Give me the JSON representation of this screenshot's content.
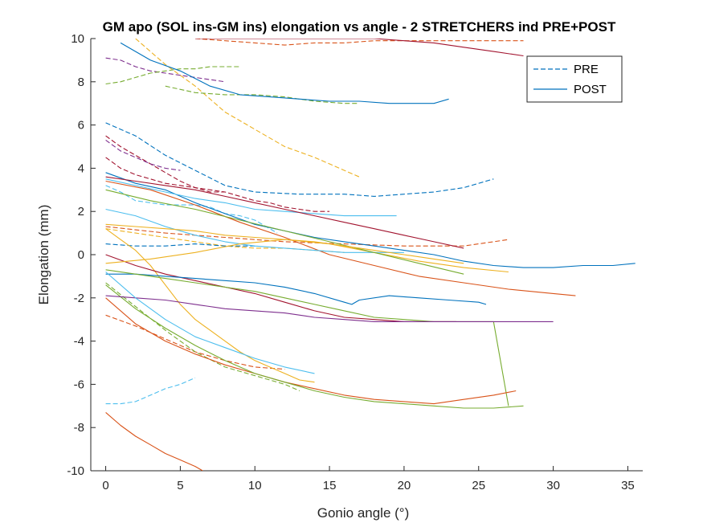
{
  "chart_data": {
    "type": "line",
    "title": "GM apo (SOL ins-GM ins) elongation vs angle - 2 STRETCHERS ind PRE+POST",
    "xlabel": "Gonio angle (°)",
    "ylabel": "Elongation (mm)",
    "xlim": [
      -1,
      36
    ],
    "ylim": [
      -10,
      10
    ],
    "xticks": [
      0,
      5,
      10,
      15,
      20,
      25,
      30,
      35
    ],
    "yticks": [
      -10,
      -8,
      -6,
      -4,
      -2,
      0,
      2,
      4,
      6,
      8,
      10
    ],
    "grid": false,
    "legend": {
      "placement": "top-right",
      "entries": [
        {
          "label": "PRE",
          "style": "dashed",
          "color": "#0072BD"
        },
        {
          "label": "POST",
          "style": "solid",
          "color": "#0072BD"
        }
      ]
    },
    "series": [
      {
        "style": "dashed",
        "color": "#0072BD",
        "x": [
          0,
          2,
          4,
          6,
          8,
          10,
          13,
          16,
          18,
          20,
          22,
          24,
          26
        ],
        "y": [
          6.1,
          5.5,
          4.6,
          3.9,
          3.2,
          2.9,
          2.8,
          2.8,
          2.7,
          2.8,
          2.9,
          3.1,
          3.5
        ]
      },
      {
        "style": "dashed",
        "color": "#D95319",
        "x": [
          6,
          8,
          10,
          12,
          14,
          16,
          18,
          20,
          22,
          24,
          26,
          28
        ],
        "y": [
          10.0,
          9.9,
          9.8,
          9.7,
          9.8,
          9.8,
          9.9,
          9.9,
          9.9,
          9.9,
          9.9,
          9.9
        ]
      },
      {
        "style": "dashed",
        "color": "#EDB120",
        "x": [
          2,
          4,
          6,
          8,
          10,
          12,
          14,
          16,
          17
        ],
        "y": [
          10.0,
          8.8,
          7.8,
          6.6,
          5.8,
          5.0,
          4.5,
          3.9,
          3.6
        ]
      },
      {
        "style": "dashed",
        "color": "#7E2F8E",
        "x": [
          0,
          1,
          2,
          3,
          4,
          5,
          6,
          7,
          8
        ],
        "y": [
          9.1,
          9.0,
          8.7,
          8.5,
          8.4,
          8.3,
          8.2,
          8.1,
          8.0
        ]
      },
      {
        "style": "dashed",
        "color": "#77AC30",
        "x": [
          0,
          1,
          2,
          3,
          4,
          5,
          6,
          7,
          8,
          9
        ],
        "y": [
          7.9,
          8.0,
          8.2,
          8.4,
          8.5,
          8.6,
          8.6,
          8.7,
          8.7,
          8.7
        ]
      },
      {
        "style": "dashed",
        "color": "#4DBEEE",
        "x": [
          0,
          1,
          2,
          3,
          4,
          5,
          6,
          7,
          8,
          9,
          10,
          11,
          11.5
        ],
        "y": [
          3.2,
          2.9,
          2.5,
          2.4,
          2.3,
          2.3,
          2.3,
          2.2,
          1.9,
          1.8,
          1.6,
          1.2,
          1.0
        ]
      },
      {
        "style": "dashed",
        "color": "#A2142F",
        "x": [
          0,
          1,
          2,
          3,
          4,
          5,
          6,
          7,
          8,
          9,
          10,
          11,
          12,
          13,
          14,
          15
        ],
        "y": [
          5.5,
          5.0,
          4.6,
          4.2,
          3.8,
          3.4,
          3.1,
          2.9,
          2.9,
          2.7,
          2.5,
          2.4,
          2.2,
          2.1,
          2.0,
          2.0
        ]
      },
      {
        "style": "dashed",
        "color": "#D95319",
        "x": [
          0,
          4,
          8,
          12,
          16,
          20,
          22,
          24,
          26,
          27
        ],
        "y": [
          1.3,
          1.0,
          0.8,
          0.6,
          0.5,
          0.4,
          0.4,
          0.4,
          0.6,
          0.7
        ]
      },
      {
        "style": "dashed",
        "color": "#EDB120",
        "x": [
          0,
          2,
          4,
          6,
          8,
          10,
          12,
          14,
          16
        ],
        "y": [
          1.2,
          1.0,
          0.8,
          0.6,
          0.4,
          0.3,
          0.3,
          0.2,
          0.1
        ]
      },
      {
        "style": "dashed",
        "color": "#0072BD",
        "x": [
          0,
          2,
          4,
          6,
          8,
          10
        ],
        "y": [
          0.5,
          0.4,
          0.4,
          0.5,
          0.4,
          0.4
        ]
      },
      {
        "style": "dashed",
        "color": "#4DBEEE",
        "x": [
          0,
          1,
          2,
          3,
          4,
          5,
          6
        ],
        "y": [
          -6.9,
          -6.9,
          -6.8,
          -6.5,
          -6.2,
          -6.0,
          -5.7
        ]
      },
      {
        "style": "dashed",
        "color": "#D95319",
        "x": [
          0,
          2,
          4,
          6,
          8,
          10,
          12
        ],
        "y": [
          -2.8,
          -3.3,
          -3.9,
          -4.5,
          -4.9,
          -5.2,
          -5.3
        ]
      },
      {
        "style": "dashed",
        "color": "#77AC30",
        "x": [
          0,
          2,
          4,
          6,
          8,
          10,
          12,
          13
        ],
        "y": [
          -1.3,
          -2.4,
          -3.5,
          -4.5,
          -5.2,
          -5.6,
          -6.0,
          -6.3
        ]
      },
      {
        "style": "dashed",
        "color": "#A2142F",
        "x": [
          0,
          1,
          2,
          3,
          4,
          5,
          6,
          7,
          8
        ],
        "y": [
          4.5,
          4.0,
          3.7,
          3.5,
          3.3,
          3.2,
          3.1,
          3.0,
          2.9
        ]
      },
      {
        "style": "dashed",
        "color": "#7E2F8E",
        "x": [
          0,
          1,
          2,
          3,
          4,
          5
        ],
        "y": [
          5.3,
          4.8,
          4.5,
          4.2,
          4.0,
          3.9
        ]
      },
      {
        "style": "dashed",
        "color": "#77AC30",
        "x": [
          4,
          6,
          8,
          10,
          12,
          14,
          16,
          17
        ],
        "y": [
          7.8,
          7.5,
          7.4,
          7.4,
          7.3,
          7.1,
          7.0,
          7.0
        ]
      },
      {
        "style": "solid",
        "color": "#0072BD",
        "x": [
          1,
          3,
          5,
          7,
          9,
          11,
          13,
          15,
          17,
          19,
          21,
          22,
          23
        ],
        "y": [
          9.8,
          9.0,
          8.5,
          7.8,
          7.4,
          7.3,
          7.2,
          7.1,
          7.1,
          7.0,
          7.0,
          7.0,
          7.2
        ]
      },
      {
        "style": "solid",
        "color": "#A2142F",
        "x": [
          6,
          10,
          14,
          18,
          20,
          22,
          24,
          26,
          28
        ],
        "y": [
          10.0,
          10.0,
          10.0,
          10.0,
          9.9,
          9.8,
          9.6,
          9.4,
          9.2
        ]
      },
      {
        "style": "solid",
        "color": "#EDB120",
        "x": [
          0,
          1,
          2,
          3,
          4,
          5,
          6,
          7,
          8,
          9,
          10,
          11,
          12,
          13,
          14
        ],
        "y": [
          1.2,
          0.7,
          0.2,
          -0.5,
          -1.4,
          -2.3,
          -3.0,
          -3.5,
          -4.0,
          -4.5,
          -4.9,
          -5.2,
          -5.5,
          -5.8,
          -5.9
        ]
      },
      {
        "style": "solid",
        "color": "#0072BD",
        "x": [
          0,
          2,
          4,
          6,
          8,
          10,
          12,
          14,
          16,
          18,
          20,
          22,
          24,
          26,
          28,
          30,
          32,
          34,
          35.5
        ],
        "y": [
          3.8,
          3.3,
          3.0,
          2.4,
          1.9,
          1.4,
          1.1,
          0.8,
          0.6,
          0.4,
          0.2,
          0.0,
          -0.3,
          -0.5,
          -0.6,
          -0.6,
          -0.5,
          -0.5,
          -0.4
        ]
      },
      {
        "style": "solid",
        "color": "#D95319",
        "x": [
          0,
          3,
          6,
          9,
          12,
          15,
          18,
          21,
          24,
          27,
          30,
          31.5
        ],
        "y": [
          3.4,
          3.0,
          2.3,
          1.5,
          0.8,
          0.0,
          -0.5,
          -1.0,
          -1.3,
          -1.6,
          -1.8,
          -1.9
        ]
      },
      {
        "style": "solid",
        "color": "#A2142F",
        "x": [
          0,
          2,
          4,
          6,
          8,
          10,
          12,
          14,
          16,
          18,
          20,
          22,
          23.5
        ],
        "y": [
          0.0,
          -0.5,
          -0.9,
          -1.2,
          -1.5,
          -1.8,
          -2.2,
          -2.6,
          -2.9,
          -3.0,
          -3.1,
          -3.1,
          -3.1
        ]
      },
      {
        "style": "solid",
        "color": "#0072BD",
        "x": [
          0,
          2,
          4,
          6,
          8,
          10,
          12,
          14,
          16,
          16.5,
          17,
          19,
          21,
          23,
          25,
          25.5
        ],
        "y": [
          -0.9,
          -0.9,
          -1.0,
          -1.1,
          -1.2,
          -1.3,
          -1.5,
          -1.8,
          -2.2,
          -2.3,
          -2.1,
          -1.9,
          -2.0,
          -2.1,
          -2.2,
          -2.3
        ]
      },
      {
        "style": "solid",
        "color": "#77AC30",
        "x": [
          0,
          2,
          4,
          6,
          8,
          10,
          12,
          14,
          16,
          18,
          20,
          22,
          24,
          26,
          27
        ],
        "y": [
          -0.7,
          -0.9,
          -1.1,
          -1.3,
          -1.5,
          -1.7,
          -2.0,
          -2.3,
          -2.6,
          -2.9,
          -3.0,
          -3.1,
          -3.1,
          -3.1,
          -7.0
        ]
      },
      {
        "style": "solid",
        "color": "#D95319",
        "x": [
          0,
          2,
          4,
          6,
          8,
          10,
          12,
          14,
          16,
          18,
          20,
          22,
          24,
          26,
          27.5
        ],
        "y": [
          -2.0,
          -3.2,
          -4.0,
          -4.6,
          -5.1,
          -5.5,
          -5.9,
          -6.2,
          -6.5,
          -6.7,
          -6.8,
          -6.9,
          -6.7,
          -6.5,
          -6.3
        ]
      },
      {
        "style": "solid",
        "color": "#77AC30",
        "x": [
          0,
          2,
          4,
          6,
          8,
          10,
          12,
          14,
          16,
          18,
          20,
          22,
          24,
          26,
          28
        ],
        "y": [
          -1.4,
          -2.5,
          -3.4,
          -4.2,
          -4.9,
          -5.5,
          -5.9,
          -6.3,
          -6.6,
          -6.8,
          -6.9,
          -7.0,
          -7.1,
          -7.1,
          -7.0
        ]
      },
      {
        "style": "solid",
        "color": "#4DBEEE",
        "x": [
          0,
          2,
          4,
          6,
          8,
          10,
          12,
          14,
          16,
          18,
          20
        ],
        "y": [
          2.1,
          1.8,
          1.3,
          0.9,
          0.6,
          0.4,
          0.3,
          0.2,
          0.1,
          0.1,
          0.1
        ]
      },
      {
        "style": "solid",
        "color": "#4DBEEE",
        "x": [
          0,
          2,
          4,
          6,
          8,
          10,
          12,
          14,
          16,
          18,
          19.5
        ],
        "y": [
          3.5,
          3.2,
          2.9,
          2.6,
          2.4,
          2.1,
          2.0,
          1.9,
          1.8,
          1.8,
          1.8
        ]
      },
      {
        "style": "solid",
        "color": "#EDB120",
        "x": [
          0,
          3,
          6,
          9,
          12,
          15,
          18,
          21,
          24,
          27
        ],
        "y": [
          -0.4,
          -0.2,
          0.1,
          0.5,
          0.7,
          0.5,
          0.1,
          -0.3,
          -0.6,
          -0.8
        ]
      },
      {
        "style": "solid",
        "color": "#7E2F8E",
        "x": [
          0,
          2,
          4,
          6,
          8,
          10,
          12,
          14,
          16,
          18,
          20,
          22,
          24,
          26,
          28,
          30
        ],
        "y": [
          -1.9,
          -2.0,
          -2.1,
          -2.3,
          -2.5,
          -2.6,
          -2.7,
          -2.9,
          -3.0,
          -3.1,
          -3.1,
          -3.1,
          -3.1,
          -3.1,
          -3.1,
          -3.1
        ]
      },
      {
        "style": "solid",
        "color": "#D95319",
        "x": [
          0,
          1,
          2,
          3,
          4,
          5,
          6,
          6.5
        ],
        "y": [
          -7.3,
          -7.9,
          -8.4,
          -8.8,
          -9.2,
          -9.5,
          -9.8,
          -10.0
        ]
      },
      {
        "style": "solid",
        "color": "#4DBEEE",
        "x": [
          0,
          2,
          4,
          6,
          8,
          10,
          12,
          14
        ],
        "y": [
          -0.8,
          -2.0,
          -3.0,
          -3.8,
          -4.3,
          -4.8,
          -5.2,
          -5.5
        ]
      },
      {
        "style": "solid",
        "color": "#A2142F",
        "x": [
          0,
          2,
          4,
          6,
          8,
          10,
          12,
          14,
          16,
          18,
          20,
          22,
          24
        ],
        "y": [
          3.6,
          3.4,
          3.2,
          3.0,
          2.7,
          2.4,
          2.1,
          1.8,
          1.5,
          1.2,
          0.9,
          0.6,
          0.3
        ]
      },
      {
        "style": "solid",
        "color": "#77AC30",
        "x": [
          0,
          3,
          6,
          9,
          12,
          15,
          18,
          21,
          24
        ],
        "y": [
          3.0,
          2.5,
          2.1,
          1.6,
          1.1,
          0.6,
          0.1,
          -0.4,
          -0.9
        ]
      },
      {
        "style": "solid",
        "color": "#EDB120",
        "x": [
          0,
          2,
          4,
          6,
          8,
          10,
          12,
          14,
          16,
          18,
          20,
          22,
          24
        ],
        "y": [
          1.4,
          1.3,
          1.2,
          1.1,
          0.9,
          0.8,
          0.7,
          0.6,
          0.4,
          0.2,
          0.0,
          -0.2,
          -0.4
        ]
      }
    ]
  }
}
